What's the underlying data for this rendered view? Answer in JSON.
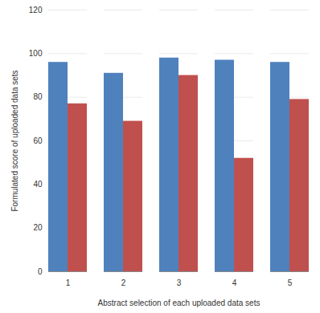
{
  "chart_data": {
    "type": "bar",
    "x_label": "Abstract selection of each uploaded data sets",
    "y_label": "Formulated score of uploaded data sets",
    "categories": [
      "1",
      "2",
      "3",
      "4",
      "5"
    ],
    "series": [
      {
        "color": "#4f81bd",
        "values": [
          96,
          91,
          98,
          97,
          96
        ]
      },
      {
        "color": "#c0504d",
        "values": [
          77,
          69,
          90,
          52,
          79
        ]
      }
    ],
    "ylim": [
      0,
      120
    ],
    "yticks": [
      0,
      20,
      40,
      60,
      80,
      100,
      120
    ],
    "grid": true
  }
}
